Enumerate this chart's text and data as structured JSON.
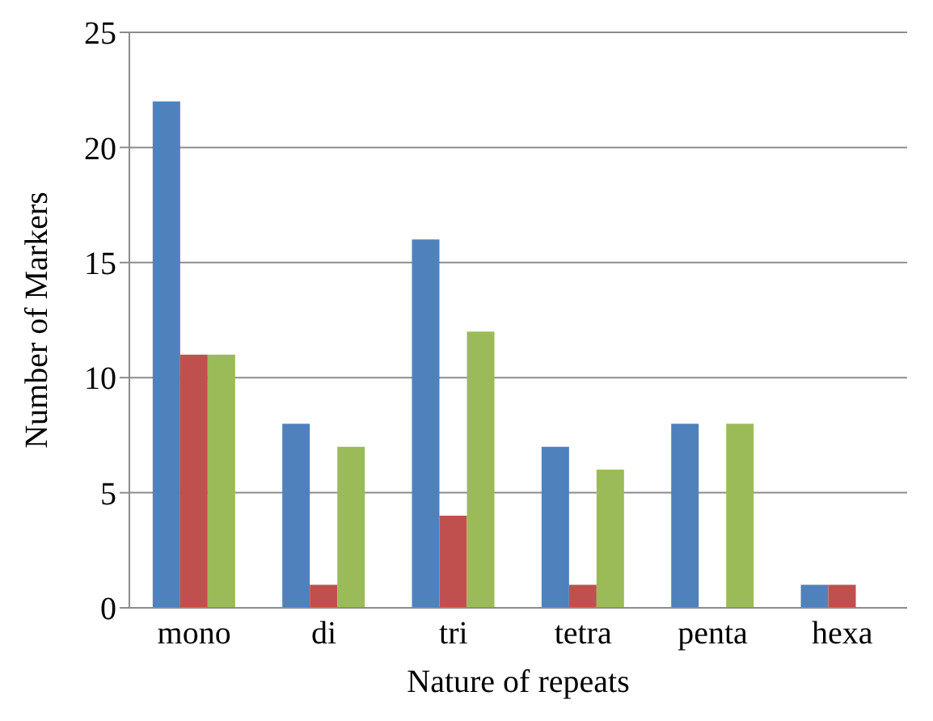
{
  "chart_data": {
    "type": "bar",
    "xlabel": "Nature of repeats",
    "ylabel": "Number of Markers",
    "categories": [
      "mono",
      "di",
      "tri",
      "tetra",
      "penta",
      "hexa"
    ],
    "series": [
      {
        "color": "#4f81bd",
        "values": [
          22,
          8,
          16,
          7,
          8,
          1
        ]
      },
      {
        "color": "#c0504d",
        "values": [
          11,
          1,
          4,
          1,
          0,
          1
        ]
      },
      {
        "color": "#9bbb59",
        "values": [
          11,
          7,
          12,
          6,
          8,
          0
        ]
      }
    ],
    "ylim": [
      0,
      25
    ],
    "yticks": [
      0,
      5,
      10,
      15,
      20,
      25
    ],
    "grid": "y"
  }
}
